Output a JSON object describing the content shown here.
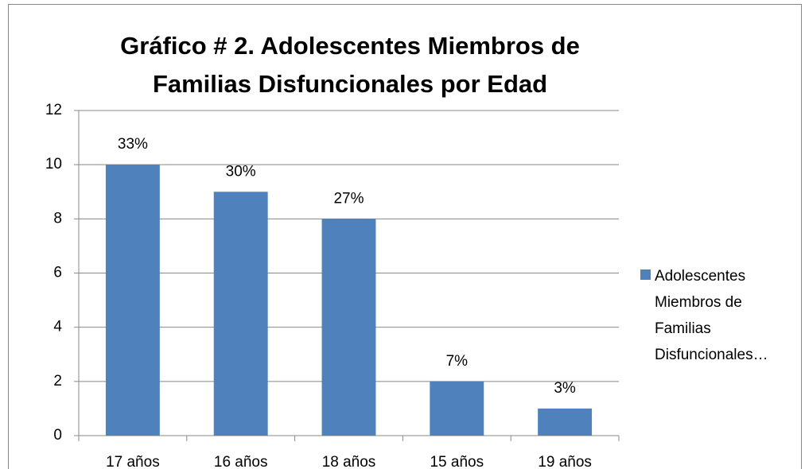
{
  "chart_data": {
    "type": "bar",
    "title": [
      "Gráfico # 2.  Adolescentes Miembros de",
      "Familias Disfuncionales por Edad"
    ],
    "categories": [
      "17 años",
      "16 años",
      "18 años",
      "15 años",
      "19 años"
    ],
    "series": [
      {
        "name": "Adolescentes Miembros de Familias Disfuncionales…",
        "color": "#4f81bd",
        "values": [
          10,
          9,
          8,
          2,
          1
        ]
      }
    ],
    "annotations": [
      "33%",
      "30%",
      "27%",
      "7%",
      "3%"
    ],
    "ylim": [
      0,
      12
    ],
    "yticks": [
      0,
      2,
      4,
      6,
      8,
      10,
      12
    ],
    "grid": true,
    "legend": "right"
  }
}
